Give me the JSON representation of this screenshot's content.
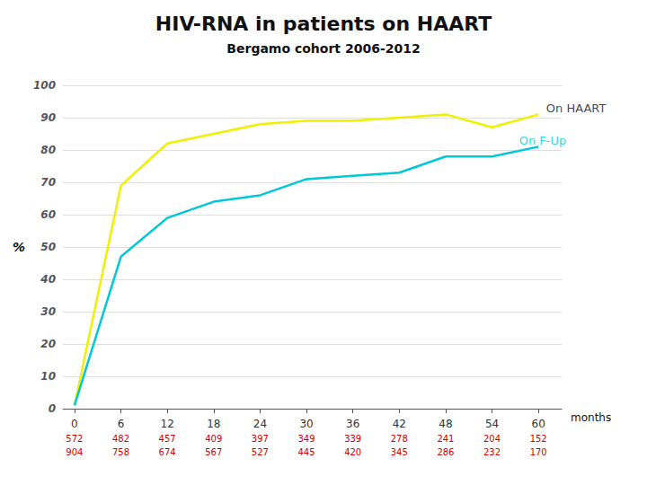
{
  "chart_data": {
    "type": "line",
    "title": "HIV-RNA in patients on HAART",
    "subtitle": "Bergamo cohort 2006-2012",
    "ylabel": "%",
    "xlabel": "months",
    "x": [
      0,
      6,
      12,
      18,
      24,
      30,
      36,
      42,
      48,
      54,
      60
    ],
    "series": [
      {
        "color": "#f0f000",
        "values": [
          1,
          69,
          82,
          85,
          88,
          89,
          89,
          90,
          91,
          87,
          91
        ]
      },
      {
        "color": "#00c8d8",
        "values": [
          1,
          47,
          59,
          64,
          66,
          71,
          72,
          73,
          78,
          78,
          81
        ]
      }
    ],
    "xlim": [
      -1.5,
      63
    ],
    "xticks": [
      0,
      6,
      12,
      18,
      24,
      30,
      36,
      42,
      48,
      54,
      60
    ],
    "ylim": [
      0,
      100
    ],
    "yticks": [
      0,
      10,
      20,
      30,
      40,
      50,
      60,
      70,
      80,
      90,
      100
    ],
    "grid": true,
    "annotations": [
      {
        "text": "On HAART",
        "x": 61,
        "y": 93,
        "color": "#111111"
      },
      {
        "text": "On F-Up",
        "x": 57.5,
        "y": 83,
        "color": "#00c8d8"
      }
    ],
    "counts": {
      "color": "#cc0000",
      "rows": [
        [
          572,
          482,
          457,
          409,
          397,
          349,
          339,
          278,
          241,
          204,
          152
        ],
        [
          904,
          758,
          674,
          567,
          527,
          445,
          420,
          345,
          286,
          232,
          170
        ]
      ]
    }
  }
}
